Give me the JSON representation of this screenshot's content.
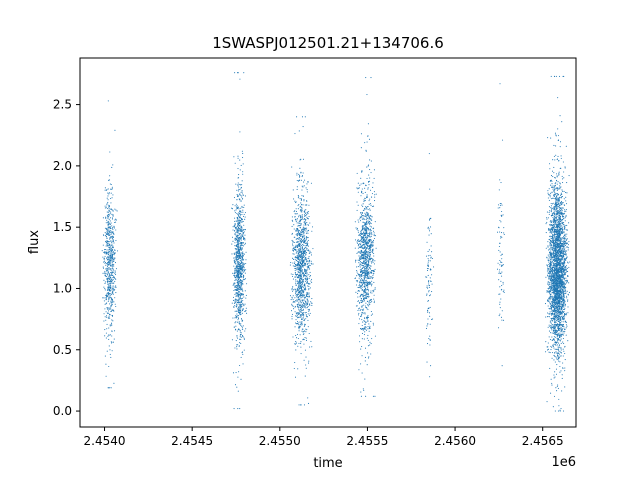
{
  "chart_data": {
    "type": "scatter",
    "title": "1SWASPJ012501.21+134706.6",
    "xlabel": "time",
    "ylabel": "flux",
    "x_offset_label": "1e6",
    "xlim": [
      2453860,
      2456690
    ],
    "ylim": [
      -0.13,
      2.88
    ],
    "x_ticks": [
      2.454,
      2.4545,
      2.455,
      2.4555,
      2.456,
      2.4565
    ],
    "x_tick_labels": [
      "2.4540",
      "2.4545",
      "2.4550",
      "2.4555",
      "2.4560",
      "2.4565"
    ],
    "y_ticks": [
      0.0,
      0.5,
      1.0,
      1.5,
      2.0,
      2.5
    ],
    "y_tick_labels": [
      "0.0",
      "0.5",
      "1.0",
      "1.5",
      "2.0",
      "2.5"
    ],
    "grid": false,
    "legend": "none",
    "marker_color": "#1f77b4",
    "observing_seasons": [
      {
        "time_start": 2453980,
        "time_end": 2454080,
        "median_flux": 1.2,
        "spread": 0.28,
        "points": 650,
        "max_flux": 2.53,
        "min_flux": 0.19
      },
      {
        "time_start": 2454720,
        "time_end": 2454815,
        "median_flux": 1.2,
        "spread": 0.3,
        "points": 1000,
        "max_flux": 2.76,
        "min_flux": 0.02
      },
      {
        "time_start": 2455050,
        "time_end": 2455200,
        "median_flux": 1.18,
        "spread": 0.3,
        "points": 1200,
        "max_flux": 2.4,
        "min_flux": 0.05
      },
      {
        "time_start": 2455420,
        "time_end": 2455560,
        "median_flux": 1.25,
        "spread": 0.3,
        "points": 1100,
        "max_flux": 2.72,
        "min_flux": 0.12
      },
      {
        "time_start": 2455820,
        "time_end": 2455880,
        "median_flux": 1.1,
        "spread": 0.3,
        "points": 90,
        "max_flux": 2.1,
        "min_flux": 0.28
      },
      {
        "time_start": 2456230,
        "time_end": 2456290,
        "median_flux": 1.25,
        "spread": 0.3,
        "points": 80,
        "max_flux": 2.67,
        "min_flux": 0.37
      },
      {
        "time_start": 2456510,
        "time_end": 2456660,
        "median_flux": 1.15,
        "spread": 0.32,
        "points": 3000,
        "max_flux": 2.73,
        "min_flux": 0.0
      }
    ]
  }
}
